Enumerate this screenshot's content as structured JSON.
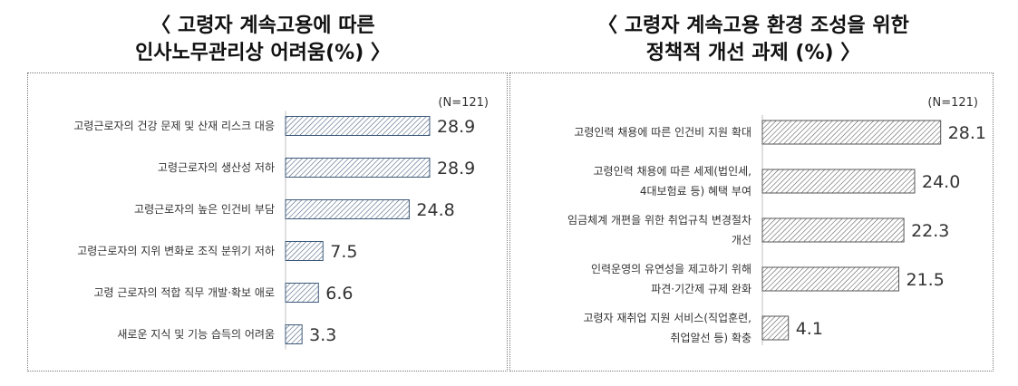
{
  "titles": {
    "left_line1": "〈 고령자 계속고용에 따른",
    "left_line2": "인사노무관리상 어려움(%) 〉",
    "right_line1": "〈 고령자 계속고용 환경 조성을 위한",
    "right_line2": "정책적 개선 과제 (%) 〉"
  },
  "chart_data": [
    {
      "type": "bar",
      "orientation": "horizontal",
      "note": "(N=121)",
      "categories": [
        [
          "고령근로자의 건강 문제 및 산재 리스크 대응"
        ],
        [
          "고령근로자의 생산성 저하"
        ],
        [
          "고령근로자의 높은 인건비 부담"
        ],
        [
          "고령근로자의 지위 변화로 조직 분위기 저하"
        ],
        [
          "고령 근로자의 적합 직무 개발·확보 애로"
        ],
        [
          "새로운 지식 및 기능 습득의 어려움"
        ]
      ],
      "values": [
        28.9,
        28.9,
        24.8,
        7.5,
        6.6,
        3.3
      ],
      "value_labels": [
        "28.9",
        "28.9",
        "24.8",
        "7.5",
        "6.6",
        "3.3"
      ],
      "xlim": [
        0,
        30
      ],
      "bar_fill": "hatched",
      "bar_color": "#3e5a7a"
    },
    {
      "type": "bar",
      "orientation": "horizontal",
      "note": "(N=121)",
      "categories": [
        [
          "고령인력 채용에 따른 인건비 지원 확대"
        ],
        [
          "고령인력 채용에 따른 세제(법인세,",
          "4대보험료 등) 혜택 부여"
        ],
        [
          "임금체계 개편을 위한 취업규칙 변경절차",
          "개선"
        ],
        [
          "인력운영의 유연성을 제고하기 위해",
          "파견·기간제 규제 완화"
        ],
        [
          "고령자 재취업 지원 서비스(직업훈련,",
          "취업알선 등) 확충"
        ]
      ],
      "values": [
        28.1,
        24.0,
        22.3,
        21.5,
        4.1
      ],
      "value_labels": [
        "28.1",
        "24.0",
        "22.3",
        "21.5",
        "4.1"
      ],
      "xlim": [
        0,
        30
      ],
      "bar_fill": "hatched",
      "bar_color": "#555555"
    }
  ]
}
